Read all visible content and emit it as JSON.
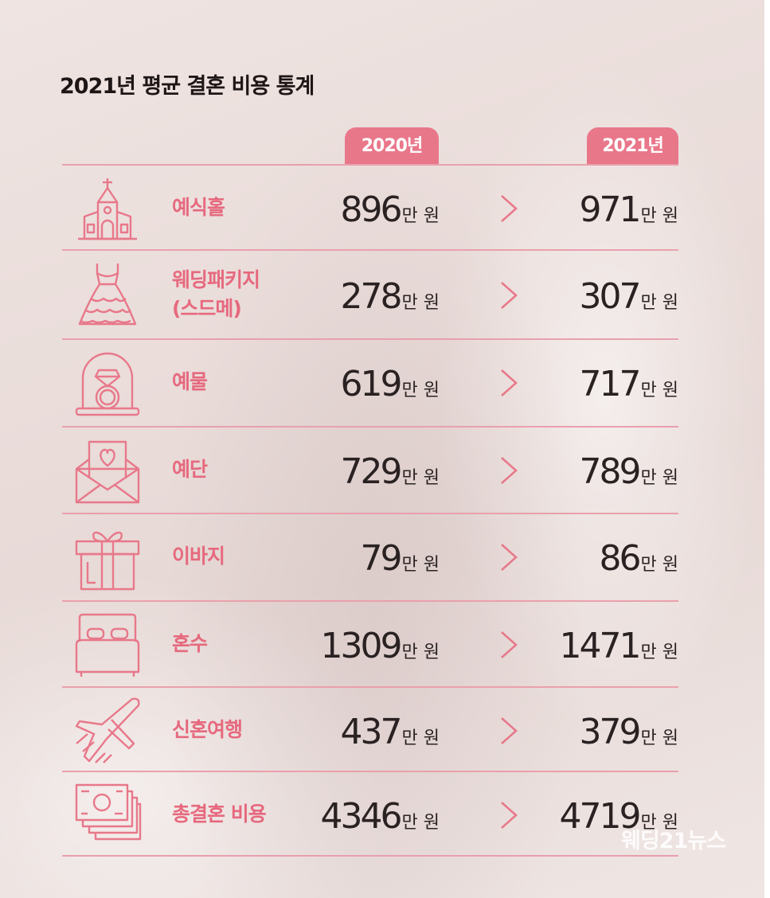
{
  "title": "2021년 평균 결혼 비용 통계",
  "years": {
    "y2020": "2020년",
    "y2021": "2021년"
  },
  "unit": "만 원",
  "rows": [
    {
      "icon": "church-icon",
      "label": "예식홀",
      "v2020": "896",
      "v2021": "971"
    },
    {
      "icon": "wedding-dress-icon",
      "label": "웨딩패키지",
      "label2": "(스드메)",
      "v2020": "278",
      "v2021": "307"
    },
    {
      "icon": "ring-icon",
      "label": "예물",
      "v2020": "619",
      "v2021": "717"
    },
    {
      "icon": "envelope-heart-icon",
      "label": "예단",
      "v2020": "729",
      "v2021": "789"
    },
    {
      "icon": "gift-icon",
      "label": "이바지",
      "v2020": "79",
      "v2021": "86"
    },
    {
      "icon": "bed-icon",
      "label": "혼수",
      "v2020": "1309",
      "v2021": "1471"
    },
    {
      "icon": "airplane-icon",
      "label": "신혼여행",
      "v2020": "437",
      "v2021": "379"
    },
    {
      "icon": "cash-stack-icon",
      "label": "총결혼 비용",
      "v2020": "4346",
      "v2021": "4719"
    }
  ],
  "watermark": "웨딩21뉴스",
  "colors": {
    "accent": "#e9778a",
    "label": "#e6697e",
    "value": "#2a2222"
  }
}
